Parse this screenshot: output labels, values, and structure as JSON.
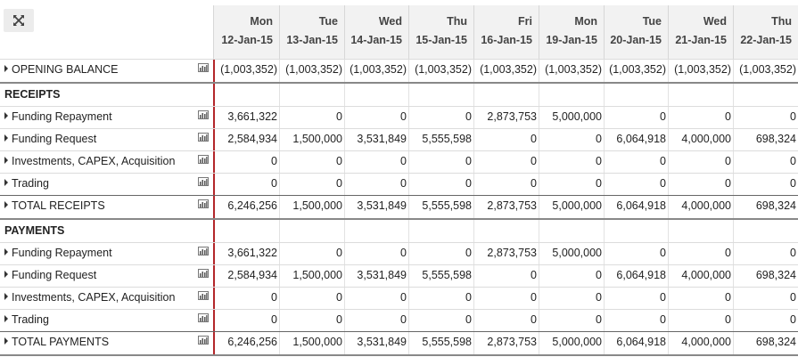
{
  "columns": [
    {
      "dow": "Mon",
      "date": "12-Jan-15"
    },
    {
      "dow": "Tue",
      "date": "13-Jan-15"
    },
    {
      "dow": "Wed",
      "date": "14-Jan-15"
    },
    {
      "dow": "Thu",
      "date": "15-Jan-15"
    },
    {
      "dow": "Fri",
      "date": "16-Jan-15"
    },
    {
      "dow": "Mon",
      "date": "19-Jan-15"
    },
    {
      "dow": "Tue",
      "date": "20-Jan-15"
    },
    {
      "dow": "Wed",
      "date": "21-Jan-15"
    },
    {
      "dow": "Thu",
      "date": "22-Jan-15"
    }
  ],
  "rows": [
    {
      "type": "item",
      "label": "OPENING BALANCE",
      "values": [
        "(1,003,352)",
        "(1,003,352)",
        "(1,003,352)",
        "(1,003,352)",
        "(1,003,352)",
        "(1,003,352)",
        "(1,003,352)",
        "(1,003,352)",
        "(1,003,352)"
      ]
    },
    {
      "type": "section",
      "label": "RECEIPTS"
    },
    {
      "type": "item",
      "label": "Funding Repayment",
      "values": [
        "3,661,322",
        "0",
        "0",
        "0",
        "2,873,753",
        "5,000,000",
        "0",
        "0",
        "0"
      ]
    },
    {
      "type": "item",
      "label": "Funding Request",
      "values": [
        "2,584,934",
        "1,500,000",
        "3,531,849",
        "5,555,598",
        "0",
        "0",
        "6,064,918",
        "4,000,000",
        "698,324"
      ]
    },
    {
      "type": "item",
      "label": "Investments, CAPEX, Acquisition",
      "values": [
        "0",
        "0",
        "0",
        "0",
        "0",
        "0",
        "0",
        "0",
        "0"
      ]
    },
    {
      "type": "item",
      "label": "Trading",
      "values": [
        "0",
        "0",
        "0",
        "0",
        "0",
        "0",
        "0",
        "0",
        "0"
      ]
    },
    {
      "type": "total",
      "label": "TOTAL RECEIPTS",
      "values": [
        "6,246,256",
        "1,500,000",
        "3,531,849",
        "5,555,598",
        "2,873,753",
        "5,000,000",
        "6,064,918",
        "4,000,000",
        "698,324"
      ]
    },
    {
      "type": "section",
      "label": "PAYMENTS"
    },
    {
      "type": "item",
      "label": "Funding Repayment",
      "values": [
        "3,661,322",
        "0",
        "0",
        "0",
        "2,873,753",
        "5,000,000",
        "0",
        "0",
        "0"
      ]
    },
    {
      "type": "item",
      "label": "Funding Request",
      "values": [
        "2,584,934",
        "1,500,000",
        "3,531,849",
        "5,555,598",
        "0",
        "0",
        "6,064,918",
        "4,000,000",
        "698,324"
      ]
    },
    {
      "type": "item",
      "label": "Investments, CAPEX, Acquisition",
      "values": [
        "0",
        "0",
        "0",
        "0",
        "0",
        "0",
        "0",
        "0",
        "0"
      ]
    },
    {
      "type": "item",
      "label": "Trading",
      "values": [
        "0",
        "0",
        "0",
        "0",
        "0",
        "0",
        "0",
        "0",
        "0"
      ]
    },
    {
      "type": "total",
      "label": "TOTAL PAYMENTS",
      "values": [
        "6,246,256",
        "1,500,000",
        "3,531,849",
        "5,555,598",
        "2,873,753",
        "5,000,000",
        "6,064,918",
        "4,000,000",
        "698,324"
      ]
    }
  ],
  "icons": {
    "expand": "expand-icon",
    "row_chart": "bar-chart-icon",
    "row_toggle": "triangle-right-icon"
  },
  "colors": {
    "header_bg": "#f2f2f2",
    "current_day_line": "#b3262a",
    "grid_line": "#dcdcdc"
  }
}
